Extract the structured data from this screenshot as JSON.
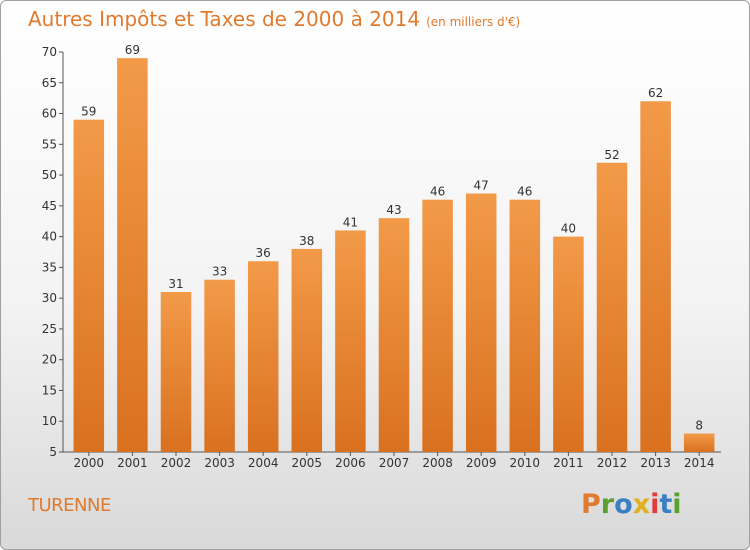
{
  "chart_data": {
    "type": "bar",
    "title": "Autres Impôts et Taxes de 2000 à 2014",
    "unit": "(en milliers d'€)",
    "categories": [
      "2000",
      "2001",
      "2002",
      "2003",
      "2004",
      "2005",
      "2006",
      "2007",
      "2008",
      "2009",
      "2010",
      "2011",
      "2012",
      "2013",
      "2014"
    ],
    "values": [
      59,
      69,
      31,
      33,
      36,
      38,
      41,
      43,
      46,
      47,
      46,
      40,
      52,
      62,
      8
    ],
    "ylim": [
      5,
      70
    ],
    "yticks": [
      5,
      10,
      15,
      20,
      25,
      30,
      35,
      40,
      45,
      50,
      55,
      60,
      65,
      70
    ],
    "grid": false,
    "legend": "none",
    "bar_color": "#f29a48",
    "bar_color_dark": "#d9711f"
  },
  "commune": "TURENNE",
  "logo": {
    "text": "Proxiti",
    "letter_colors": [
      "#e07a2e",
      "#5aa02c",
      "#3a7fc1",
      "#e0b020",
      "#e03a3a",
      "#3a7fc1",
      "#5aa02c"
    ]
  },
  "colors": {
    "title": "#e07a2e",
    "axis": "#555555"
  }
}
